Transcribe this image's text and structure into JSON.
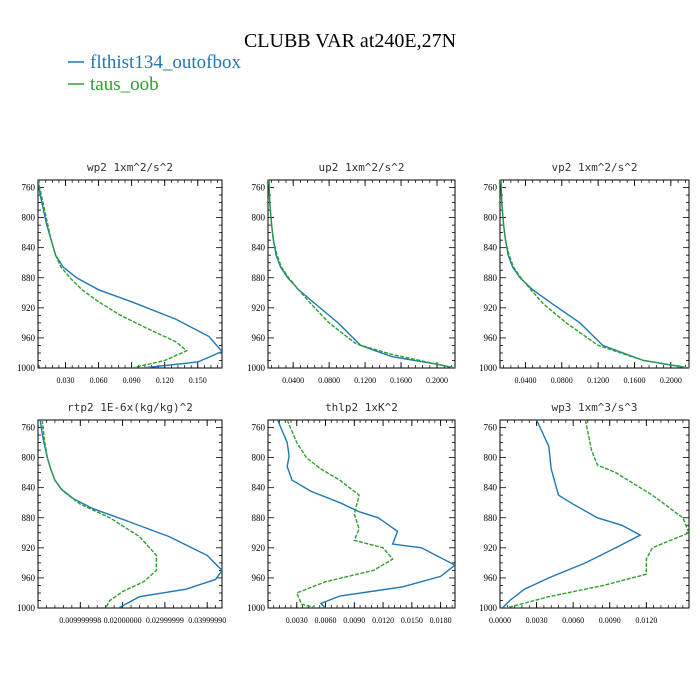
{
  "figure": {
    "title": "CLUBB VAR at240E,27N",
    "legend": [
      {
        "label": "flthist134_outofbox",
        "color": "#1f77b4"
      },
      {
        "label": "taus_oob",
        "color": "#2ca02c"
      }
    ]
  },
  "chart_data": [
    {
      "type": "line",
      "title": "wp2   1xm^2/s^2",
      "xlim": [
        0.005,
        0.172
      ],
      "ylim": [
        1000,
        750
      ],
      "y_ticks": [
        760,
        800,
        840,
        880,
        920,
        960,
        1000
      ],
      "x_ticks": [
        0.03,
        0.06,
        0.09,
        0.12,
        0.15
      ],
      "x_tick_labels": [
        "0.030",
        "0.060",
        "0.090",
        "0.120",
        "0.150"
      ],
      "series": [
        {
          "name": "flthist134_outofbox",
          "color": "#1f77b4",
          "x": [
            0.005,
            0.007,
            0.01,
            0.013,
            0.017,
            0.021,
            0.028,
            0.04,
            0.06,
            0.09,
            0.13,
            0.16,
            0.172,
            0.15,
            0.1
          ],
          "y": [
            750,
            770,
            790,
            810,
            830,
            850,
            866,
            880,
            896,
            912,
            935,
            958,
            978,
            992,
            1000
          ]
        },
        {
          "name": "taus_oob",
          "color": "#2ca02c",
          "x": [
            0.005,
            0.008,
            0.011,
            0.014,
            0.017,
            0.021,
            0.026,
            0.034,
            0.045,
            0.06,
            0.08,
            0.105,
            0.13,
            0.14,
            0.12,
            0.09
          ],
          "y": [
            750,
            770,
            790,
            810,
            830,
            850,
            866,
            880,
            896,
            912,
            930,
            948,
            965,
            977,
            990,
            1000
          ]
        }
      ]
    },
    {
      "type": "line",
      "title": "up2   1xm^2/s^2",
      "xlim": [
        0.012,
        0.22
      ],
      "ylim": [
        1000,
        750
      ],
      "y_ticks": [
        760,
        800,
        840,
        880,
        920,
        960,
        1000
      ],
      "x_ticks": [
        0.04,
        0.08,
        0.12,
        0.16,
        0.2
      ],
      "x_tick_labels": [
        "0.0400",
        "0.0800",
        "0.1200",
        "0.1600",
        "0.2000"
      ],
      "series": [
        {
          "name": "flthist134_outofbox",
          "color": "#1f77b4",
          "x": [
            0.013,
            0.014,
            0.016,
            0.018,
            0.021,
            0.026,
            0.034,
            0.046,
            0.065,
            0.09,
            0.115,
            0.15,
            0.2,
            0.22
          ],
          "y": [
            750,
            780,
            810,
            830,
            850,
            866,
            880,
            896,
            915,
            940,
            970,
            985,
            995,
            1000
          ]
        },
        {
          "name": "taus_oob",
          "color": "#2ca02c",
          "x": [
            0.013,
            0.014,
            0.016,
            0.018,
            0.022,
            0.027,
            0.035,
            0.046,
            0.06,
            0.08,
            0.11,
            0.15,
            0.2,
            0.22
          ],
          "y": [
            750,
            780,
            810,
            830,
            850,
            866,
            880,
            896,
            915,
            940,
            968,
            982,
            995,
            1000
          ]
        }
      ]
    },
    {
      "type": "line",
      "title": "vp2   1xm^2/s^2",
      "xlim": [
        0.012,
        0.22
      ],
      "ylim": [
        1000,
        750
      ],
      "y_ticks": [
        760,
        800,
        840,
        880,
        920,
        960,
        1000
      ],
      "x_ticks": [
        0.04,
        0.08,
        0.12,
        0.16,
        0.2
      ],
      "x_tick_labels": [
        "0.0400",
        "0.0800",
        "0.1200",
        "0.1600",
        "0.2000"
      ],
      "series": [
        {
          "name": "flthist134_outofbox",
          "color": "#1f77b4",
          "x": [
            0.013,
            0.014,
            0.016,
            0.018,
            0.021,
            0.026,
            0.034,
            0.048,
            0.07,
            0.1,
            0.125,
            0.17,
            0.22
          ],
          "y": [
            750,
            780,
            810,
            830,
            850,
            866,
            880,
            896,
            915,
            940,
            970,
            990,
            1000
          ]
        },
        {
          "name": "taus_oob",
          "color": "#2ca02c",
          "x": [
            0.013,
            0.014,
            0.016,
            0.018,
            0.022,
            0.027,
            0.035,
            0.046,
            0.06,
            0.085,
            0.12,
            0.17,
            0.22
          ],
          "y": [
            750,
            780,
            810,
            830,
            850,
            866,
            880,
            896,
            915,
            940,
            970,
            990,
            1000
          ]
        }
      ]
    },
    {
      "type": "line",
      "title": "rtp2   1E-6x(kg/kg)^2",
      "xlim": [
        0.0,
        0.0435
      ],
      "ylim": [
        1000,
        750
      ],
      "y_ticks": [
        760,
        800,
        840,
        880,
        920,
        960,
        1000
      ],
      "x_ticks": [
        0.01,
        0.02,
        0.03,
        0.04
      ],
      "x_tick_labels": [
        "0.009999998",
        "0.02000000",
        "0.02999999",
        "0.03999990"
      ],
      "series": [
        {
          "name": "flthist134_outofbox",
          "color": "#1f77b4",
          "x": [
            0.0005,
            0.0012,
            0.0022,
            0.003,
            0.004,
            0.0055,
            0.0085,
            0.013,
            0.02,
            0.031,
            0.04,
            0.0435,
            0.042,
            0.035,
            0.024,
            0.019
          ],
          "y": [
            750,
            775,
            800,
            815,
            830,
            842,
            855,
            868,
            882,
            905,
            930,
            950,
            962,
            975,
            985,
            1000
          ]
        },
        {
          "name": "taus_oob",
          "color": "#2ca02c",
          "x": [
            0.001,
            0.0015,
            0.0022,
            0.003,
            0.004,
            0.006,
            0.01,
            0.017,
            0.024,
            0.028,
            0.028,
            0.025,
            0.02,
            0.017,
            0.016
          ],
          "y": [
            750,
            775,
            800,
            815,
            830,
            845,
            862,
            880,
            905,
            930,
            950,
            965,
            978,
            990,
            1000
          ]
        }
      ]
    },
    {
      "type": "line",
      "title": "thlp2   1xK^2",
      "xlim": [
        0.0,
        0.0195
      ],
      "ylim": [
        1000,
        750
      ],
      "y_ticks": [
        760,
        800,
        840,
        880,
        920,
        960,
        1000
      ],
      "x_ticks": [
        0.003,
        0.006,
        0.009,
        0.012,
        0.015,
        0.018
      ],
      "x_tick_labels": [
        "0.0030",
        "0.0060",
        "0.0090",
        "0.0120",
        "0.0150",
        "0.0180"
      ],
      "series": [
        {
          "name": "flthist134_outofbox",
          "color": "#1f77b4",
          "x": [
            0.001,
            0.002,
            0.0022,
            0.002,
            0.0025,
            0.0045,
            0.0075,
            0.0095,
            0.0115,
            0.0135,
            0.013,
            0.016,
            0.0195,
            0.018,
            0.014,
            0.0075,
            0.0055,
            0.006
          ],
          "y": [
            750,
            780,
            798,
            812,
            830,
            845,
            860,
            872,
            880,
            898,
            915,
            920,
            943,
            958,
            972,
            984,
            994,
            1000
          ]
        },
        {
          "name": "taus_oob",
          "color": "#2ca02c",
          "x": [
            0.002,
            0.003,
            0.004,
            0.0055,
            0.0075,
            0.0095,
            0.009,
            0.0095,
            0.009,
            0.012,
            0.013,
            0.011,
            0.006,
            0.003,
            0.0035,
            0.005
          ],
          "y": [
            750,
            780,
            800,
            815,
            830,
            850,
            875,
            895,
            910,
            920,
            935,
            950,
            965,
            980,
            995,
            1000
          ]
        }
      ]
    },
    {
      "type": "line",
      "title": "wp3   1xm^3/s^3",
      "xlim": [
        0.0,
        0.0155
      ],
      "ylim": [
        1000,
        750
      ],
      "y_ticks": [
        760,
        800,
        840,
        880,
        920,
        960,
        1000
      ],
      "x_ticks": [
        0.0,
        0.003,
        0.006,
        0.009,
        0.012
      ],
      "x_tick_labels": [
        "0.0000",
        "0.0030",
        "0.0060",
        "0.0090",
        "0.0120"
      ],
      "series": [
        {
          "name": "flthist134_outofbox",
          "color": "#1f77b4",
          "x": [
            0.003,
            0.004,
            0.0042,
            0.0048,
            0.006,
            0.008,
            0.01,
            0.0115,
            0.0095,
            0.007,
            0.004,
            0.002,
            0.0008,
            0.0002
          ],
          "y": [
            750,
            785,
            815,
            850,
            862,
            880,
            890,
            903,
            920,
            940,
            960,
            975,
            990,
            1000
          ]
        },
        {
          "name": "taus_oob",
          "color": "#2ca02c",
          "x": [
            0.007,
            0.0075,
            0.008,
            0.0095,
            0.0125,
            0.015,
            0.0155,
            0.0125,
            0.012,
            0.012,
            0.0085,
            0.004,
            0.0005
          ],
          "y": [
            750,
            790,
            810,
            820,
            850,
            880,
            900,
            920,
            935,
            955,
            970,
            985,
            1000
          ]
        }
      ]
    }
  ]
}
